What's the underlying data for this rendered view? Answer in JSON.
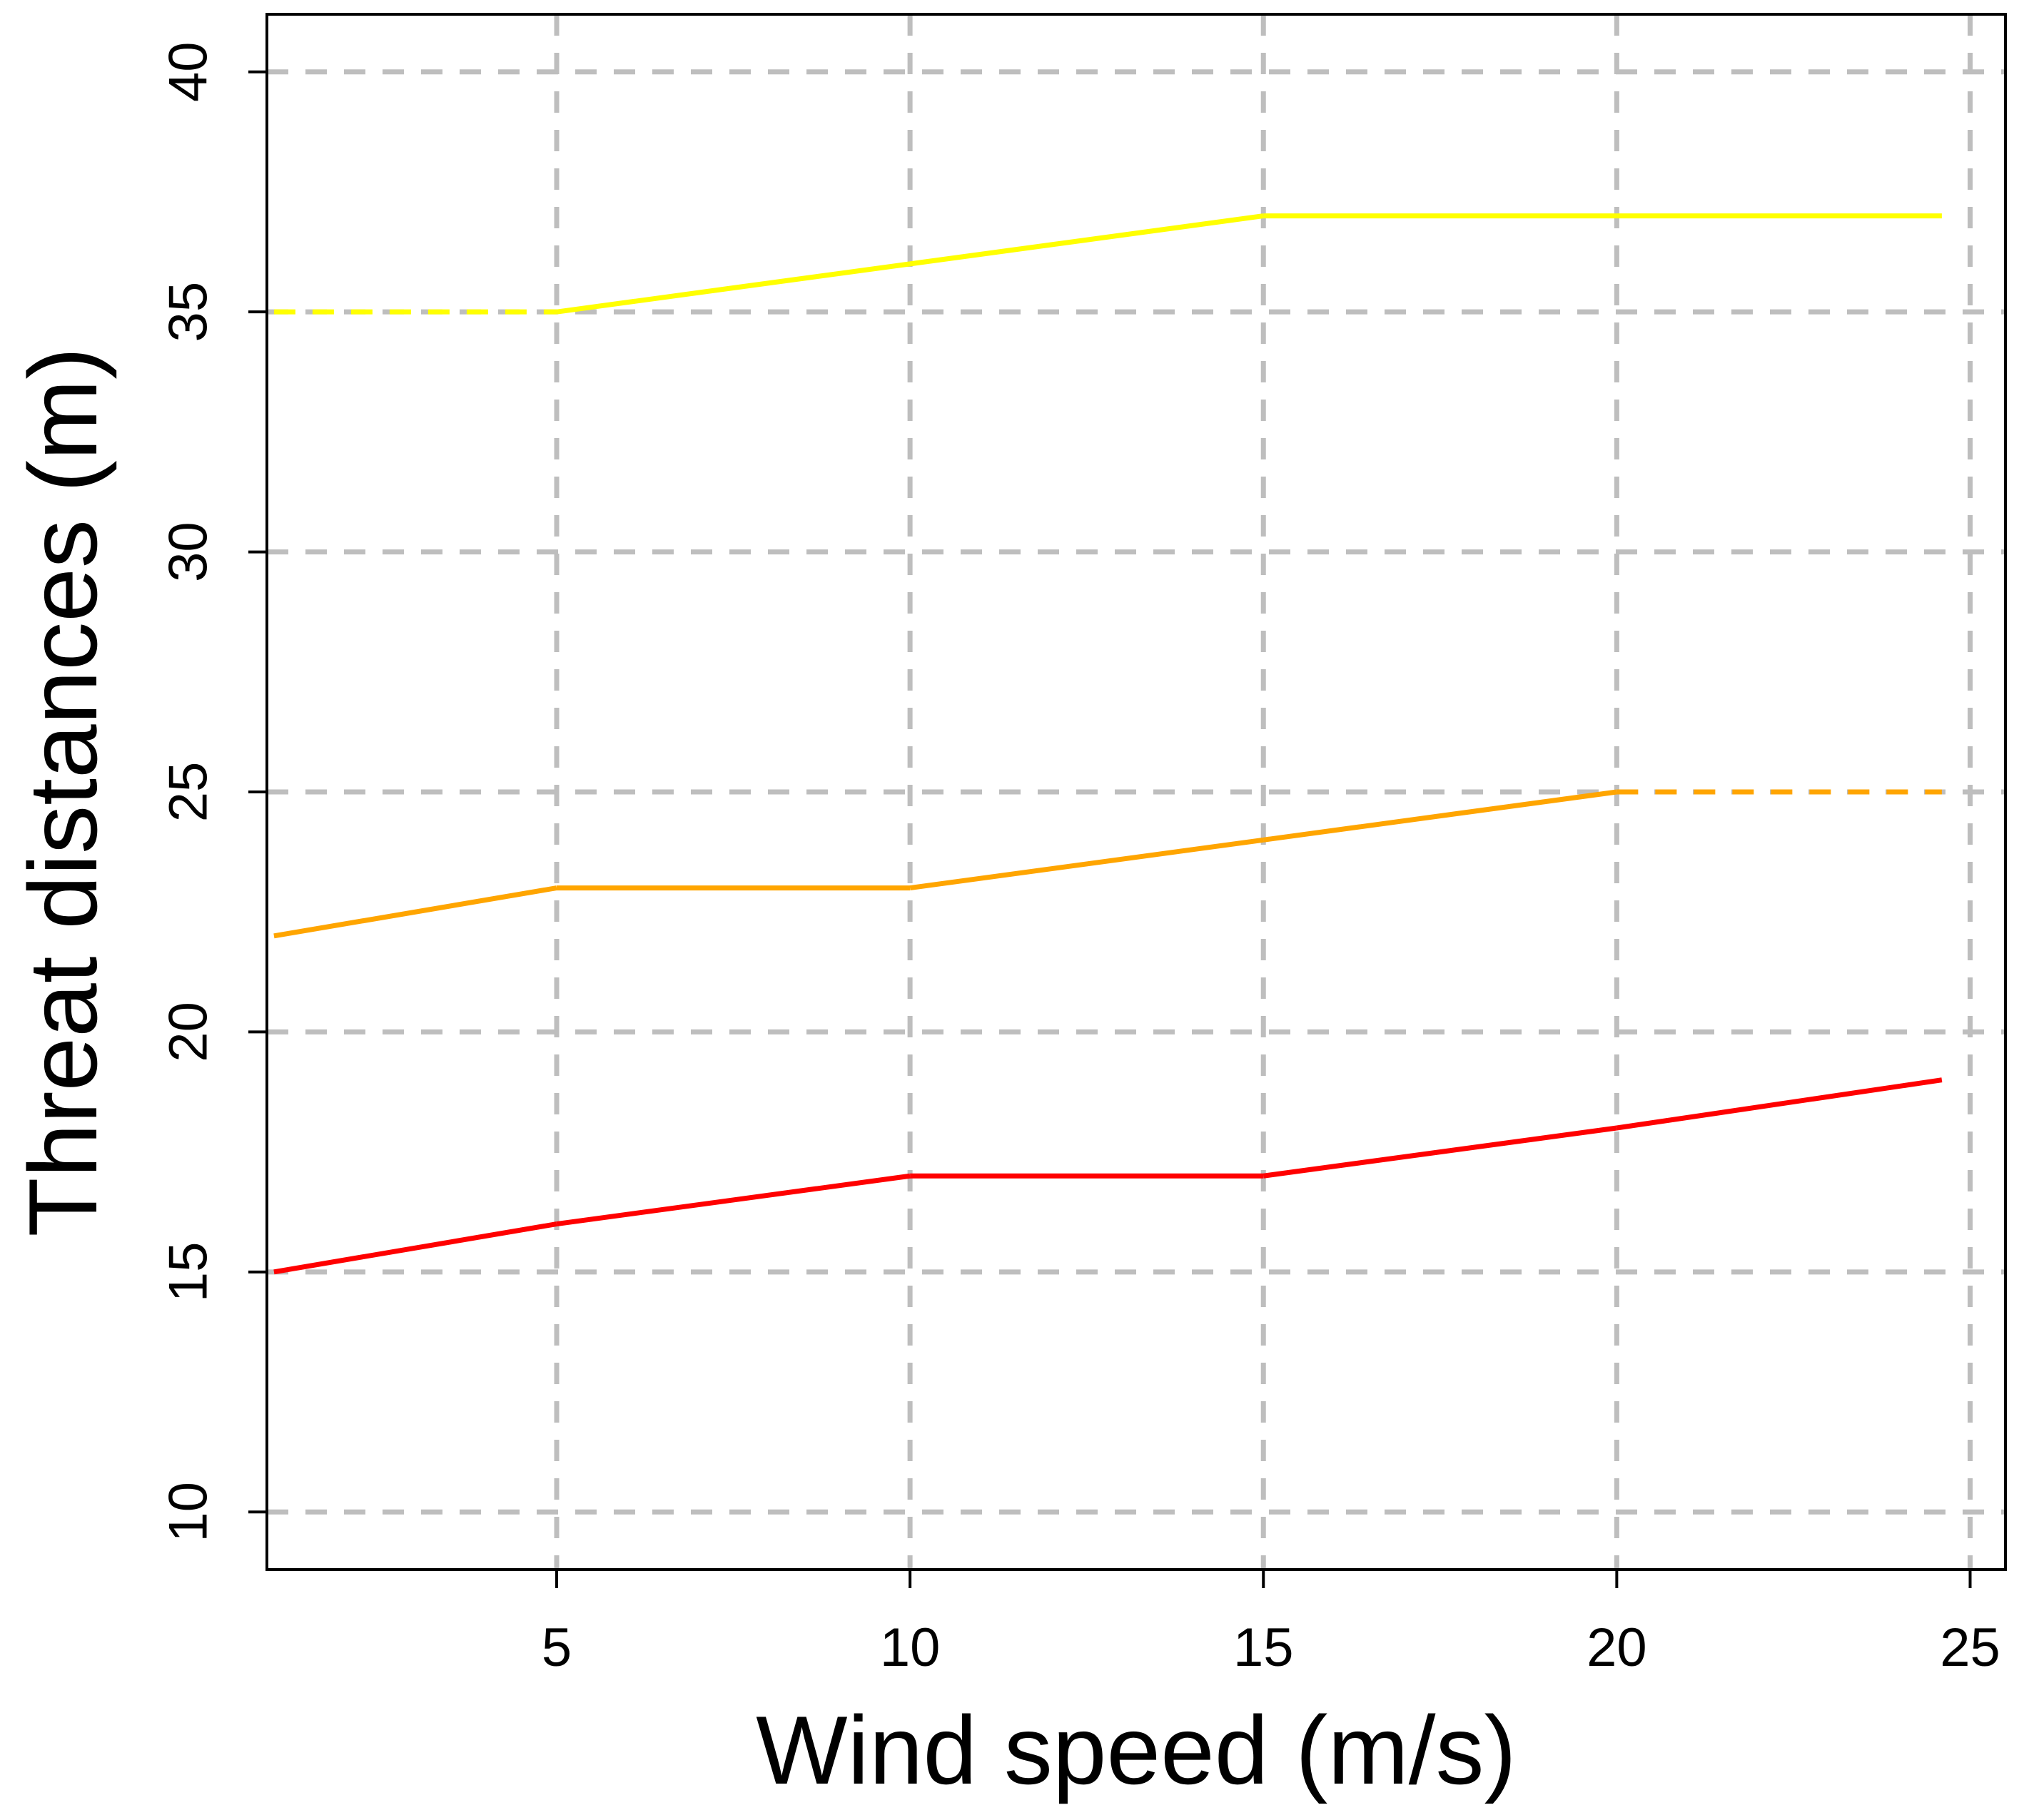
{
  "chart_data": {
    "type": "line",
    "title": "",
    "xlabel": "Wind speed (m/s)",
    "ylabel": "Threat distances (m)",
    "xlim": [
      0.9,
      25.5
    ],
    "ylim": [
      8.8,
      41.2
    ],
    "xticks": [
      5,
      10,
      15,
      20,
      25
    ],
    "yticks": [
      10,
      15,
      20,
      25,
      30,
      35,
      40
    ],
    "grid": true,
    "grid_color": "#bebebe",
    "legend": "none",
    "x": [
      1.0,
      5.0,
      10.0,
      15.0,
      20.0,
      24.6
    ],
    "series": [
      {
        "color": "#ffff00",
        "values": [
          35,
          35,
          36,
          37,
          37,
          37
        ],
        "dashed_segments": [
          0
        ]
      },
      {
        "color": "#ffa500",
        "values": [
          22,
          23,
          23,
          24,
          25,
          25
        ],
        "dashed_segments": [
          4
        ]
      },
      {
        "color": "#ff0000",
        "values": [
          15,
          16,
          17,
          17,
          18,
          19
        ],
        "dashed_segments": []
      }
    ]
  }
}
